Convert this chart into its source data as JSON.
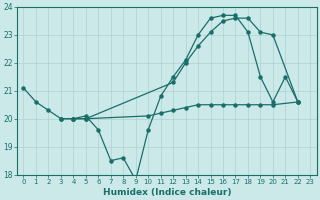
{
  "xlabel": "Humidex (Indice chaleur)",
  "background_color": "#cce9e9",
  "grid_color": "#b0d0d0",
  "line_color": "#1a6e6a",
  "xlim": [
    -0.5,
    23.5
  ],
  "ylim": [
    18,
    24
  ],
  "yticks": [
    18,
    19,
    20,
    21,
    22,
    23,
    24
  ],
  "xticks": [
    0,
    1,
    2,
    3,
    4,
    5,
    6,
    7,
    8,
    9,
    10,
    11,
    12,
    13,
    14,
    15,
    16,
    17,
    18,
    19,
    20,
    21,
    22,
    23
  ],
  "line1_x": [
    0,
    1,
    2,
    3,
    4,
    5,
    6,
    7,
    8,
    9,
    10,
    11,
    12,
    13,
    14,
    15,
    16,
    17,
    18,
    19,
    20,
    21,
    22
  ],
  "line1_y": [
    21.1,
    20.6,
    20.3,
    20.0,
    20.0,
    20.1,
    19.6,
    18.5,
    18.6,
    17.8,
    19.6,
    20.8,
    21.5,
    22.1,
    23.0,
    23.6,
    23.7,
    23.7,
    23.1,
    21.5,
    20.6,
    21.5,
    20.6
  ],
  "line2_x": [
    3,
    4,
    5,
    12,
    13,
    14,
    15,
    16,
    17,
    18,
    19,
    20,
    22
  ],
  "line2_y": [
    20.0,
    20.0,
    20.0,
    21.3,
    22.0,
    22.6,
    23.1,
    23.5,
    23.6,
    23.6,
    23.1,
    23.0,
    20.6
  ],
  "line3_x": [
    4,
    5,
    10,
    11,
    12,
    13,
    14,
    15,
    16,
    17,
    18,
    19,
    20,
    22
  ],
  "line3_y": [
    20.0,
    20.0,
    20.1,
    20.2,
    20.3,
    20.4,
    20.5,
    20.5,
    20.5,
    20.5,
    20.5,
    20.5,
    20.5,
    20.6
  ]
}
